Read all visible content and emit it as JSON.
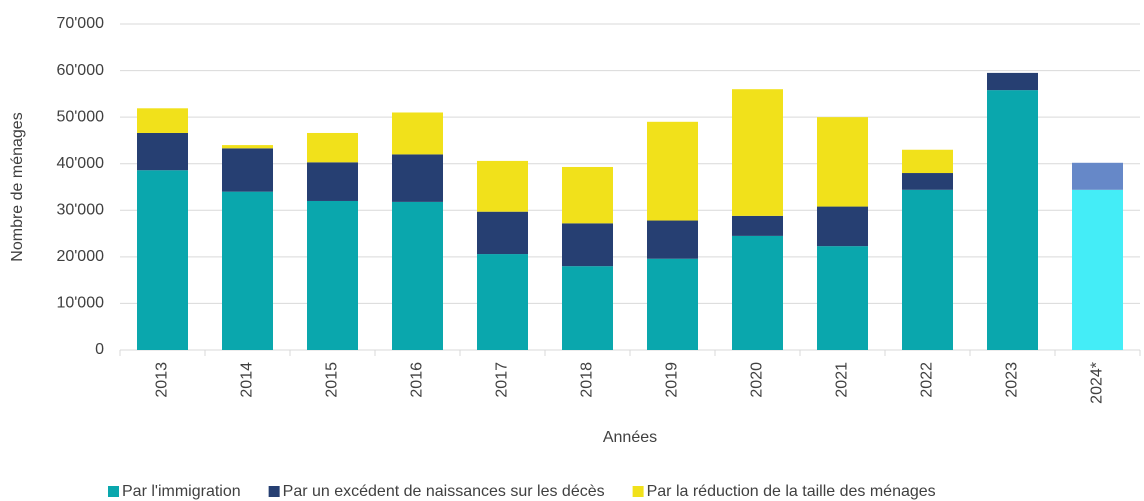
{
  "chart_data": {
    "type": "stacked_bar",
    "xlabel": "Années",
    "ylabel": "Nombre de ménages",
    "categories": [
      "2013",
      "2014",
      "2015",
      "2016",
      "2017",
      "2018",
      "2019",
      "2020",
      "2021",
      "2022",
      "2023",
      "2024*"
    ],
    "series": [
      {
        "name": "Par l'immigration",
        "color": "#0aa7ad",
        "colors": [
          "#0aa7ad",
          "#0aa7ad",
          "#0aa7ad",
          "#0aa7ad",
          "#0aa7ad",
          "#0aa7ad",
          "#0aa7ad",
          "#0aa7ad",
          "#0aa7ad",
          "#0aa7ad",
          "#0aa7ad",
          "#44edf7"
        ],
        "values": [
          38600,
          34000,
          32000,
          31800,
          20600,
          18000,
          19600,
          24500,
          22300,
          34400,
          55800,
          34400
        ]
      },
      {
        "name": "Par un excédent de naissances sur les décès",
        "color": "#263f72",
        "colors": [
          "#263f72",
          "#263f72",
          "#263f72",
          "#263f72",
          "#263f72",
          "#263f72",
          "#263f72",
          "#263f72",
          "#263f72",
          "#263f72",
          "#263f72",
          "#6688c8"
        ],
        "values": [
          8000,
          9300,
          8300,
          10200,
          9100,
          9200,
          8200,
          4300,
          8500,
          3600,
          3700,
          5800
        ]
      },
      {
        "name": "Par la réduction de la taille des ménages",
        "color": "#f1e11b",
        "colors": [
          "#f1e11b",
          "#f1e11b",
          "#f1e11b",
          "#f1e11b",
          "#f1e11b",
          "#f1e11b",
          "#f1e11b",
          "#f1e11b",
          "#f1e11b",
          "#f1e11b",
          "#f1e11b",
          "#f1e11b"
        ],
        "values": [
          5300,
          700,
          6300,
          9000,
          10900,
          12100,
          21200,
          27200,
          19200,
          5000,
          0,
          0
        ]
      }
    ],
    "ylim": [
      0,
      70000
    ],
    "yticks": [
      0,
      {
        "value": 10000,
        "label": "10'000"
      },
      {
        "value": 20000,
        "label": "20'000"
      },
      {
        "value": 30000,
        "label": "30'000"
      },
      {
        "value": 40000,
        "label": "40'000"
      },
      {
        "value": 50000,
        "label": "50'000"
      },
      {
        "value": 60000,
        "label": "60'000"
      },
      {
        "value": 70000,
        "label": "70'000"
      }
    ],
    "grid": true,
    "legend": "bottom"
  }
}
